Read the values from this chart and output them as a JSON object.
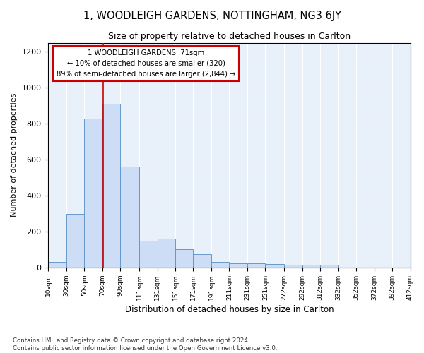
{
  "title": "1, WOODLEIGH GARDENS, NOTTINGHAM, NG3 6JY",
  "subtitle": "Size of property relative to detached houses in Carlton",
  "xlabel": "Distribution of detached houses by size in Carlton",
  "ylabel": "Number of detached properties",
  "bar_color": "#ccddf5",
  "bar_edge_color": "#6699cc",
  "bg_color": "#e8f0fa",
  "annotation_box_color": "#ffffff",
  "annotation_box_edge": "#cc0000",
  "red_line_color": "#cc0000",
  "property_line_x": 71,
  "annotation_text_line1": "1 WOODLEIGH GARDENS: 71sqm",
  "annotation_text_line2": "← 10% of detached houses are smaller (320)",
  "annotation_text_line3": "89% of semi-detached houses are larger (2,844) →",
  "footer_line1": "Contains HM Land Registry data © Crown copyright and database right 2024.",
  "footer_line2": "Contains public sector information licensed under the Open Government Licence v3.0.",
  "bin_edges": [
    10,
    30,
    50,
    70,
    90,
    111,
    131,
    151,
    171,
    191,
    211,
    231,
    251,
    272,
    292,
    312,
    332,
    352,
    372,
    392,
    412
  ],
  "bar_heights": [
    30,
    300,
    830,
    910,
    560,
    150,
    160,
    100,
    75,
    30,
    25,
    25,
    20,
    15,
    15,
    15,
    0,
    0,
    0,
    0
  ],
  "ylim": [
    0,
    1250
  ],
  "yticks": [
    0,
    200,
    400,
    600,
    800,
    1000,
    1200
  ],
  "tick_labels": [
    "10sqm",
    "30sqm",
    "50sqm",
    "70sqm",
    "90sqm",
    "111sqm",
    "131sqm",
    "151sqm",
    "171sqm",
    "191sqm",
    "211sqm",
    "231sqm",
    "251sqm",
    "272sqm",
    "292sqm",
    "312sqm",
    "332sqm",
    "352sqm",
    "372sqm",
    "392sqm",
    "412sqm"
  ]
}
